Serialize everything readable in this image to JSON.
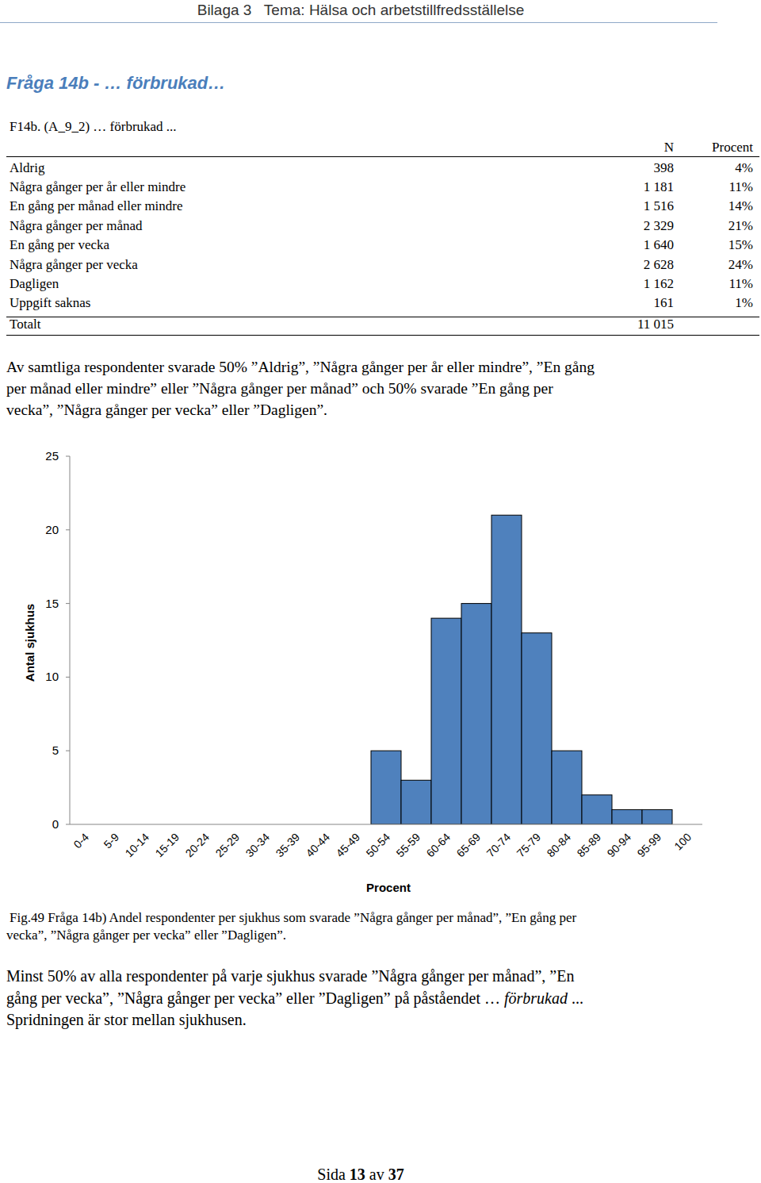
{
  "header": {
    "title": "Bilaga 3   Tema: Hälsa och arbetstillfredsställelse"
  },
  "heading": "Fråga 14b - … förbrukad…",
  "table": {
    "caption": "F14b. (A_9_2) … förbrukad ...",
    "header": [
      "N",
      "Procent"
    ],
    "rows": [
      [
        "Aldrig",
        "398",
        "4%"
      ],
      [
        "Några gånger per år eller mindre",
        "1 181",
        "11%"
      ],
      [
        "En gång per månad eller mindre",
        "1 516",
        "14%"
      ],
      [
        "Några gånger per månad",
        "2 329",
        "21%"
      ],
      [
        "En gång per vecka",
        "1 640",
        "15%"
      ],
      [
        "Några gånger per vecka",
        "2 628",
        "24%"
      ],
      [
        "Dagligen",
        "1 162",
        "11%"
      ],
      [
        "Uppgift saknas",
        "161",
        "1%"
      ],
      [
        "Totalt",
        "11 015"
      ]
    ]
  },
  "paragraph": {
    "lines": [
      "Av samtliga respondenter svarade 50% ”Aldrig”, ”Några gånger per år eller mindre”, ”En gång",
      "per månad eller mindre” eller ”Några gånger per månad” och 50% svarade ”En gång per",
      "vecka”, ”Några gånger per vecka” eller ”Dagligen”."
    ]
  },
  "chart_data": {
    "type": "bar",
    "categories": [
      "0-4",
      "5-9",
      "10-14",
      "15-19",
      "20-24",
      "25-29",
      "30-34",
      "35-39",
      "40-44",
      "45-49",
      "50-54",
      "55-59",
      "60-64",
      "65-69",
      "70-74",
      "75-79",
      "80-84",
      "85-89",
      "90-94",
      "95-99",
      "100"
    ],
    "values": [
      0,
      0,
      0,
      0,
      0,
      0,
      0,
      0,
      0,
      0,
      5,
      3,
      14,
      15,
      21,
      13,
      5,
      2,
      1,
      1,
      0
    ],
    "color": "#4f81bd",
    "ylim": [
      0,
      25
    ],
    "yticks": [
      0,
      5,
      10,
      15,
      20,
      25
    ],
    "xlabel": "Procent",
    "ylabel": "Antal sjukhus",
    "grid": false
  },
  "caption": {
    "lines": [
      "Fig.49 Fråga 14b) Andel respondenter per sjukhus som svarade ”Några gånger per månad”, ”En gång per",
      "vecka”, ”Några gånger per vecka” eller ”Dagligen”."
    ]
  },
  "conclusion": {
    "lines": [
      [
        {
          "text": "Minst 50% av alla respondenter på varje sjukhus svarade ”Några gånger per månad”, ”En",
          "italic": false
        }
      ],
      [
        {
          "text": "gång per vecka”, ”Några gånger per vecka” eller ”Dagligen” på påståendet … ",
          "italic": false
        },
        {
          "text": "förbrukad",
          "italic": true
        },
        {
          "text": " ...",
          "italic": false
        }
      ],
      [
        {
          "text": "Spridningen är stor mellan sjukhusen.",
          "italic": false
        }
      ]
    ]
  },
  "footer": {
    "parts": [
      {
        "text": "Sida ",
        "bold": false
      },
      {
        "text": "13",
        "bold": true
      },
      {
        "text": " av ",
        "bold": false
      },
      {
        "text": "37",
        "bold": true
      }
    ]
  }
}
